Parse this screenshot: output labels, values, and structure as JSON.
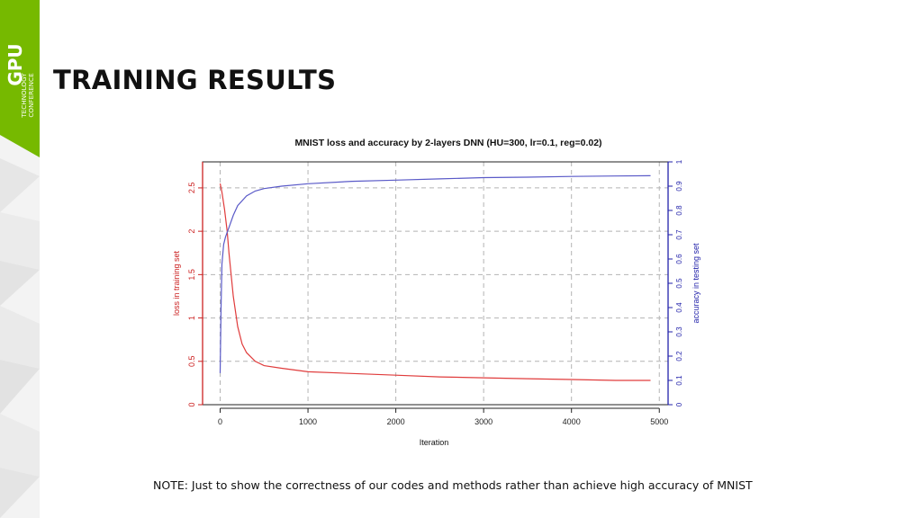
{
  "slide": {
    "title": "TRAINING RESULTS",
    "note": "NOTE: Just to show the correctness of our codes and methods rather than achieve high accuracy of MNIST"
  },
  "logo": {
    "main": "GPU",
    "line1": "TECHNOLOGY",
    "line2": "CONFERENCE",
    "accent_color": "#76b900"
  },
  "chart_data": {
    "type": "line",
    "title": "MNIST loss and accuracy by 2-layers DNN (HU=300, lr=0.1, reg=0.02)",
    "xlabel": "Iteration",
    "ylabel_left": "loss in training set",
    "ylabel_right": "accuracy in testing set",
    "xlim": [
      -200,
      5100
    ],
    "ylim_left": [
      0,
      2.8
    ],
    "ylim_right": [
      0,
      1
    ],
    "x_ticks": [
      0,
      1000,
      2000,
      3000,
      4000,
      5000
    ],
    "y_ticks_left": [
      0,
      0.5,
      1,
      1.5,
      2,
      2.5
    ],
    "y_ticks_left_labels": [
      "0",
      "0.5",
      "1",
      "1.5",
      "2",
      "2.5"
    ],
    "y_ticks_right": [
      0,
      0.1,
      0.2,
      0.3,
      0.4,
      0.5,
      0.6,
      0.7,
      0.8,
      0.9,
      1
    ],
    "y_ticks_right_labels": [
      "0",
      "0.1",
      "0.2",
      "0.3",
      "0.4",
      "0.5",
      "0.6",
      "0.7",
      "0.8",
      "0.9",
      "1"
    ],
    "grid": true,
    "series": [
      {
        "axis": "left",
        "color": "#e03c3c",
        "x": [
          0,
          20,
          50,
          80,
          100,
          150,
          200,
          250,
          300,
          400,
          500,
          700,
          1000,
          1500,
          2000,
          2500,
          3000,
          3500,
          4000,
          4500,
          4900
        ],
        "values": [
          2.55,
          2.45,
          2.25,
          2.0,
          1.75,
          1.25,
          0.9,
          0.7,
          0.6,
          0.5,
          0.45,
          0.42,
          0.38,
          0.36,
          0.34,
          0.32,
          0.31,
          0.3,
          0.29,
          0.28,
          0.28
        ]
      },
      {
        "axis": "right",
        "color": "#5a5ac8",
        "x": [
          0,
          10,
          20,
          40,
          60,
          80,
          100,
          150,
          200,
          300,
          400,
          500,
          700,
          1000,
          1500,
          2000,
          2500,
          3000,
          3500,
          4000,
          4500,
          4900
        ],
        "values": [
          0.13,
          0.4,
          0.58,
          0.66,
          0.69,
          0.71,
          0.73,
          0.78,
          0.82,
          0.86,
          0.88,
          0.89,
          0.9,
          0.91,
          0.92,
          0.925,
          0.93,
          0.935,
          0.937,
          0.94,
          0.942,
          0.943
        ]
      }
    ]
  }
}
